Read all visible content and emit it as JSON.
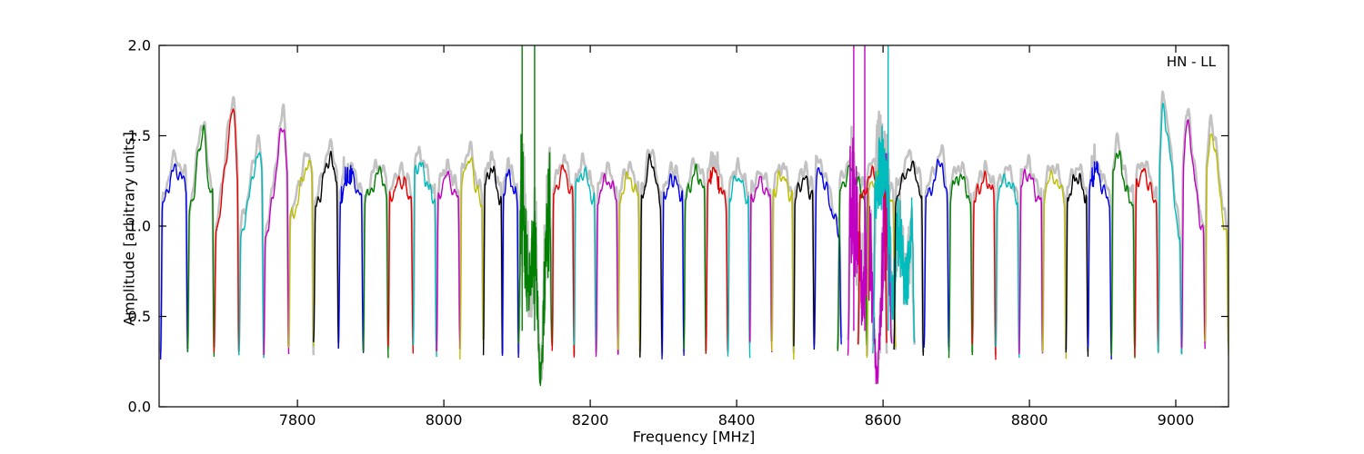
{
  "figure": {
    "annotation": "HN - LL"
  },
  "chart_data": {
    "type": "line",
    "title": "",
    "xlabel": "Frequency [MHz]",
    "ylabel": "Amplitude [arbitrary units]",
    "annotation": "HN - LL",
    "xlim": [
      7611,
      9072
    ],
    "ylim": [
      0.0,
      2.0
    ],
    "xticks": [
      7800,
      8000,
      8200,
      8400,
      8600,
      8800,
      9000
    ],
    "yticks": [
      0.0,
      0.5,
      1.0,
      1.5,
      2.0
    ],
    "grid": false,
    "legend": null,
    "colors": {
      "b": "#0000ee",
      "g": "#007f00",
      "r": "#e60000",
      "c": "#00bcbc",
      "m": "#c100c1",
      "y": "#bdbd00",
      "k": "#000000",
      "shadow": "#c2c2c2",
      "axis": "#000000",
      "background": "#ffffff"
    },
    "spectral_windows": [
      {
        "c": "b",
        "f0": 7613,
        "f1": 7650,
        "p": 1.31,
        "pf": 0.5,
        "tl": -0.15
      },
      {
        "c": "g",
        "f0": 7650,
        "f1": 7686,
        "p": 1.53,
        "pf": 0.6,
        "sl": 0.25,
        "sr": 0.1,
        "tl": -0.2
      },
      {
        "c": "r",
        "f0": 7686,
        "f1": 7720,
        "p": 1.64,
        "pf": 0.78,
        "sl": 0.32,
        "sr": 0.09,
        "tl": -0.3
      },
      {
        "c": "c",
        "f0": 7720,
        "f1": 7754,
        "p": 1.41,
        "pf": 0.78,
        "sl": 0.28,
        "sr": 0.1,
        "tl": -0.25
      },
      {
        "c": "m",
        "f0": 7754,
        "f1": 7788,
        "p": 1.56,
        "pf": 0.78,
        "sl": 0.28,
        "sr": 0.1,
        "tl": -0.28
      },
      {
        "c": "y",
        "f0": 7788,
        "f1": 7822,
        "p": 1.33,
        "pf": 0.72,
        "tl": -0.15
      },
      {
        "c": "k",
        "f0": 7822,
        "f1": 7856,
        "p": 1.37,
        "pf": 0.62,
        "tl": -0.1
      },
      {
        "c": "b",
        "f0": 7856,
        "f1": 7890,
        "p": 1.26,
        "pf": 0.5,
        "sk": true
      },
      {
        "c": "g",
        "f0": 7890,
        "f1": 7924,
        "p": 1.29,
        "pf": 0.62
      },
      {
        "c": "r",
        "f0": 7924,
        "f1": 7958,
        "p": 1.25,
        "pf": 0.5
      },
      {
        "c": "c",
        "f0": 7958,
        "f1": 7990,
        "p": 1.34,
        "pf": 0.25,
        "sr": 0.3
      },
      {
        "c": "m",
        "f0": 7990,
        "f1": 8022,
        "p": 1.27,
        "pf": 0.45
      },
      {
        "c": "y",
        "f0": 8022,
        "f1": 8054,
        "p": 1.37,
        "pf": 0.4,
        "sl": 0.24,
        "sr": 0.2
      },
      {
        "c": "k",
        "f0": 8054,
        "f1": 8080,
        "p": 1.32,
        "pf": 0.4
      },
      {
        "c": "b",
        "f0": 8080,
        "f1": 8102,
        "p": 1.28,
        "pf": 0.4
      },
      {
        "c": "g",
        "f0": 8102,
        "f1": 8148,
        "p": 1.22,
        "pf": 0.25,
        "nz": "heavy",
        "spikes": [
          8107,
          8124
        ]
      },
      {
        "c": "r",
        "f0": 8148,
        "f1": 8178,
        "p": 1.31,
        "pf": 0.5
      },
      {
        "c": "c",
        "f0": 8178,
        "f1": 8208,
        "p": 1.3,
        "pf": 0.4
      },
      {
        "c": "m",
        "f0": 8208,
        "f1": 8238,
        "p": 1.26,
        "pf": 0.5
      },
      {
        "c": "y",
        "f0": 8238,
        "f1": 8268,
        "p": 1.27,
        "pf": 0.5
      },
      {
        "c": "k",
        "f0": 8268,
        "f1": 8298,
        "p": 1.37,
        "pf": 0.5,
        "sl": 0.2,
        "sr": 0.18
      },
      {
        "c": "b",
        "f0": 8298,
        "f1": 8328,
        "p": 1.26,
        "pf": 0.5
      },
      {
        "c": "g",
        "f0": 8328,
        "f1": 8358,
        "p": 1.3,
        "pf": 0.55
      },
      {
        "c": "r",
        "f0": 8358,
        "f1": 8388,
        "p": 1.3,
        "pf": 0.35,
        "sk": true
      },
      {
        "c": "c",
        "f0": 8388,
        "f1": 8418,
        "p": 1.27,
        "pf": 0.45
      },
      {
        "c": "m",
        "f0": 8418,
        "f1": 8448,
        "p": 1.24,
        "pf": 0.5
      },
      {
        "c": "y",
        "f0": 8448,
        "f1": 8478,
        "p": 1.28,
        "pf": 0.45
      },
      {
        "c": "k",
        "f0": 8478,
        "f1": 8506,
        "p": 1.26,
        "pf": 0.5
      },
      {
        "c": "b",
        "f0": 8506,
        "f1": 8543,
        "p": 1.28,
        "pf": 0.28,
        "tl": 0.25
      },
      {
        "c": "g",
        "f0": 8538,
        "f1": 8578,
        "p": 1.31,
        "pf": 0.45
      },
      {
        "c": "m",
        "f0": 8552,
        "f1": 8612,
        "p": 1.26,
        "pf": 0.3,
        "nz": "heavy",
        "spikes": [
          8560,
          8575
        ]
      },
      {
        "c": "r",
        "f0": 8566,
        "f1": 8605,
        "p": 1.28,
        "pf": 0.5
      },
      {
        "c": "y",
        "f0": 8578,
        "f1": 8617,
        "p": 1.26,
        "pf": 0.35
      },
      {
        "c": "c",
        "f0": 8586,
        "f1": 8643,
        "p": 1.31,
        "pf": 0.25,
        "nz": "medium",
        "spikes": [
          8607
        ]
      },
      {
        "c": "k",
        "f0": 8615,
        "f1": 8655,
        "p": 1.33,
        "pf": 0.55
      },
      {
        "c": "b",
        "f0": 8656,
        "f1": 8690,
        "p": 1.35,
        "pf": 0.72,
        "sl": 0.3,
        "sr": 0.1
      },
      {
        "c": "g",
        "f0": 8690,
        "f1": 8722,
        "p": 1.28,
        "pf": 0.45
      },
      {
        "c": "r",
        "f0": 8722,
        "f1": 8754,
        "p": 1.26,
        "pf": 0.55
      },
      {
        "c": "c",
        "f0": 8754,
        "f1": 8786,
        "p": 1.26,
        "pf": 0.45
      },
      {
        "c": "m",
        "f0": 8786,
        "f1": 8818,
        "p": 1.29,
        "pf": 0.35
      },
      {
        "c": "y",
        "f0": 8818,
        "f1": 8850,
        "p": 1.28,
        "pf": 0.45
      },
      {
        "c": "k",
        "f0": 8850,
        "f1": 8880,
        "p": 1.27,
        "pf": 0.5
      },
      {
        "c": "b",
        "f0": 8880,
        "f1": 8912,
        "p": 1.29,
        "pf": 0.35,
        "sk": true
      },
      {
        "c": "g",
        "f0": 8912,
        "f1": 8944,
        "p": 1.41,
        "pf": 0.22,
        "sl": 0.12,
        "sr": 0.25
      },
      {
        "c": "r",
        "f0": 8944,
        "f1": 8976,
        "p": 1.3,
        "pf": 0.35
      },
      {
        "c": "c",
        "f0": 8976,
        "f1": 9008,
        "p": 1.66,
        "pf": 0.2,
        "sl": 0.08,
        "sr": 0.4,
        "tl": 0.45
      },
      {
        "c": "m",
        "f0": 9008,
        "f1": 9040,
        "p": 1.58,
        "pf": 0.2,
        "sl": 0.08,
        "sr": 0.32,
        "tl": 0.3
      },
      {
        "c": "y",
        "f0": 9040,
        "f1": 9072,
        "p": 1.53,
        "pf": 0.25,
        "sl": 0.1,
        "sr": 0.32,
        "tl": 0.35
      }
    ]
  }
}
